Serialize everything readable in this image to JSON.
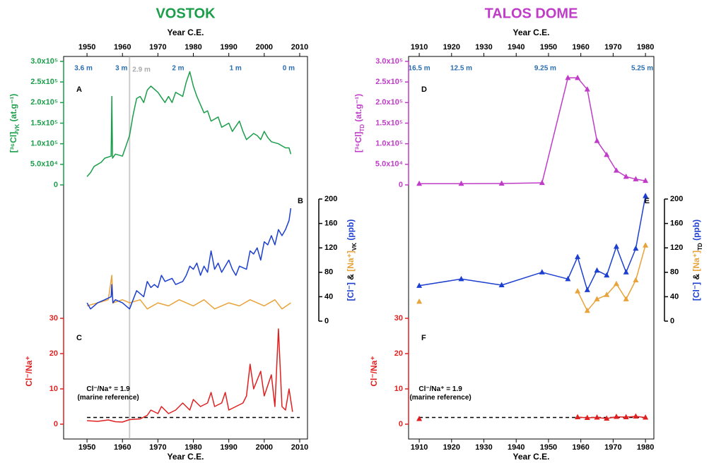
{
  "chart_data": [
    {
      "type": "line",
      "title": "VOSTOK",
      "title_color": "#1a9e4a",
      "xlabel": "Year C.E.",
      "xlim": [
        1943.4,
        2012.2
      ],
      "xticks": [
        1950,
        1960,
        1970,
        1980,
        1990,
        2000,
        2010
      ],
      "depth_color": "#2a6db0",
      "depth_labels": [
        {
          "x": 1949,
          "label": "3.6 m"
        },
        {
          "x": 1959.7,
          "label": "3 m"
        },
        {
          "x": 1975.7,
          "label": "2 m"
        },
        {
          "x": 1991.9,
          "label": "1 m"
        },
        {
          "x": 2006.9,
          "label": "0 m"
        }
      ],
      "marker_line": {
        "x": 1962,
        "label": "2.9 m",
        "color": "#aaaaaa"
      },
      "panels": [
        {
          "letter": "A",
          "side": "left",
          "axis_color": "#1a9e4a",
          "ylim": [
            0,
            300000
          ],
          "yticks": [
            0,
            {
              "value": 50000,
              "label": "5.0x10⁴"
            },
            {
              "value": 100000,
              "label": "1.0x10⁵"
            },
            {
              "value": 150000,
              "label": "1.5x10⁵"
            },
            {
              "value": 200000,
              "label": "2.0x10⁵"
            },
            {
              "value": 250000,
              "label": "2.5x10⁵"
            },
            {
              "value": 300000,
              "label": "3.0x10⁵"
            }
          ],
          "ylabel": [
            {
              "text": "[³⁶Cl]"
            },
            {
              "text": "VK",
              "sub": true
            },
            {
              "text": " (at.g⁻¹)"
            }
          ],
          "series": [
            {
              "color": "#1a9e4a",
              "x": [
                1950,
                1951,
                1952,
                1954,
                1955,
                1956.8,
                1957,
                1957.2,
                1958,
                1960,
                1961,
                1962,
                1963,
                1964,
                1965,
                1966,
                1967,
                1968,
                1970,
                1972,
                1973,
                1974,
                1975,
                1977,
                1978,
                1979,
                1980,
                1981,
                1982,
                1983,
                1984,
                1985,
                1987,
                1988,
                1990,
                1991,
                1993,
                1994,
                1995,
                1997,
                1998,
                1999,
                2000,
                2001,
                2002,
                2004,
                2005,
                2006,
                2007,
                2007.5
              ],
              "values": [
                20000,
                30000,
                45000,
                55000,
                65000,
                70000,
                215000,
                65000,
                75000,
                70000,
                95000,
                120000,
                170000,
                210000,
                215000,
                200000,
                230000,
                240000,
                225000,
                200000,
                215000,
                200000,
                225000,
                215000,
                250000,
                275000,
                240000,
                215000,
                195000,
                175000,
                180000,
                155000,
                165000,
                140000,
                150000,
                130000,
                155000,
                130000,
                110000,
                125000,
                120000,
                110000,
                130000,
                115000,
                105000,
                100000,
                95000,
                90000,
                90000,
                75000
              ]
            }
          ]
        },
        {
          "letter": "B",
          "side": "right",
          "axis_color": "#000000",
          "ylim": [
            0,
            200
          ],
          "yticks": [
            0,
            40,
            80,
            120,
            160,
            200
          ],
          "ylabel": [
            {
              "text": "[Cl⁻]",
              "color": "#1d3fcf"
            },
            {
              "text": " & ",
              "color": "#000000"
            },
            {
              "text": "[Na⁺]",
              "color": "#e8a33a"
            },
            {
              "text": "VK",
              "sub": true,
              "color": "#000000"
            },
            {
              "text": " (ppb)",
              "color": "#1d3fcf"
            }
          ],
          "series": [
            {
              "color": "#e8a33a",
              "x": [
                1950,
                1953,
                1956,
                1957,
                1957.3,
                1960,
                1962,
                1965,
                1967,
                1970,
                1973,
                1976,
                1980,
                1983,
                1986,
                1990,
                1993,
                1996,
                2000,
                2003,
                2005,
                2007.5
              ],
              "values": [
                25,
                30,
                35,
                75,
                30,
                35,
                30,
                35,
                20,
                30,
                25,
                35,
                25,
                35,
                20,
                30,
                25,
                35,
                25,
                35,
                20,
                30
              ]
            },
            {
              "color": "#1d3fcf",
              "x": [
                1950,
                1951,
                1952,
                1953,
                1955,
                1956.8,
                1957,
                1957.3,
                1958,
                1960,
                1961,
                1962,
                1963,
                1964,
                1965,
                1966,
                1967,
                1968,
                1969,
                1970,
                1971,
                1972,
                1974,
                1975,
                1977,
                1978,
                1979,
                1980,
                1981,
                1982,
                1983,
                1984,
                1985,
                1986,
                1987,
                1988,
                1990,
                1991,
                1992,
                1993,
                1995,
                1996,
                1997,
                1998,
                1999,
                2000,
                2001,
                2002,
                2003,
                2004,
                2005,
                2006,
                2007,
                2007.5
              ],
              "values": [
                30,
                20,
                25,
                30,
                35,
                40,
                60,
                30,
                35,
                30,
                25,
                20,
                35,
                50,
                45,
                40,
                65,
                55,
                60,
                55,
                75,
                65,
                70,
                60,
                65,
                75,
                90,
                85,
                95,
                75,
                90,
                80,
                115,
                85,
                95,
                80,
                100,
                85,
                75,
                90,
                85,
                115,
                110,
                120,
                100,
                130,
                125,
                140,
                125,
                150,
                140,
                150,
                165,
                185
              ]
            }
          ]
        },
        {
          "letter": "C",
          "side": "left",
          "axis_color": "#e02020",
          "ylim": [
            0,
            30
          ],
          "yticks": [
            0,
            10,
            20,
            30
          ],
          "ylabel": [
            {
              "text": "Cl⁻/Na⁺"
            }
          ],
          "reference": {
            "value": 1.9,
            "label": "Cl⁻/Na⁺ = 1.9",
            "note": "(marine reference)"
          },
          "series": [
            {
              "color": "#e02020",
              "x": [
                1950,
                1953,
                1956,
                1958,
                1960,
                1962,
                1965,
                1967,
                1968,
                1970,
                1971,
                1973,
                1975,
                1977,
                1979,
                1980,
                1982,
                1984,
                1985,
                1986,
                1988,
                1989,
                1990,
                1992,
                1994,
                1995,
                1996,
                1997,
                1999,
                2000,
                2002,
                2003,
                2004,
                2005,
                2006,
                2007,
                2008
              ],
              "values": [
                1,
                0.8,
                1.2,
                0.7,
                0.6,
                1.3,
                1.5,
                2.5,
                4,
                3,
                5,
                3,
                4,
                6,
                4,
                7,
                5,
                6,
                9,
                5,
                6,
                9,
                4,
                5,
                6,
                8,
                17,
                10,
                15,
                8,
                14,
                5,
                27,
                5,
                4,
                10,
                3.5
              ]
            }
          ]
        }
      ]
    },
    {
      "type": "line",
      "title": "TALOS DOME",
      "title_color": "#c03cc8",
      "xlabel": "Year C.E.",
      "xlim": [
        1906.7,
        1982.6
      ],
      "xticks": [
        1910,
        1920,
        1930,
        1940,
        1950,
        1960,
        1970,
        1980
      ],
      "depth_color": "#2a6db0",
      "depth_labels": [
        {
          "x": 1910,
          "label": "16.5 m"
        },
        {
          "x": 1923,
          "label": "12.5 m"
        },
        {
          "x": 1949,
          "label": "9.25 m"
        },
        {
          "x": 1979,
          "label": "5.25 m"
        }
      ],
      "marker": "triangle",
      "x": [
        1910,
        1923,
        1935.5,
        1948,
        1956,
        1959,
        1962,
        1965,
        1968,
        1971,
        1974,
        1977,
        1980
      ],
      "panels": [
        {
          "letter": "D",
          "side": "left",
          "axis_color": "#c03cc8",
          "ylim": [
            0,
            300000
          ],
          "yticks": [
            0,
            {
              "value": 50000,
              "label": "5.0x10⁴"
            },
            {
              "value": 100000,
              "label": "1.0x10⁵"
            },
            {
              "value": 150000,
              "label": "1.5x10⁵"
            },
            {
              "value": 200000,
              "label": "2.0x10⁵"
            },
            {
              "value": 250000,
              "label": "2.5x10⁵"
            },
            {
              "value": 300000,
              "label": "3.0x10⁵"
            }
          ],
          "ylabel": [
            {
              "text": "[³⁶Cl]"
            },
            {
              "text": "TD",
              "sub": true
            },
            {
              "text": " (at.g⁻¹)"
            }
          ],
          "series": [
            {
              "color": "#c03cc8",
              "values": [
                3000,
                3000,
                3500,
                5000,
                260000,
                260000,
                232000,
                107000,
                73000,
                35000,
                20000,
                14000,
                10000
              ]
            }
          ]
        },
        {
          "letter": "E",
          "side": "right",
          "axis_color": "#000000",
          "ylim": [
            0,
            200
          ],
          "yticks": [
            0,
            40,
            80,
            120,
            160,
            200
          ],
          "ylabel": [
            {
              "text": "[Cl⁻]",
              "color": "#1d3fcf"
            },
            {
              "text": " & ",
              "color": "#000000"
            },
            {
              "text": "[Na⁺]",
              "color": "#e8a33a"
            },
            {
              "text": "TD",
              "sub": true,
              "color": "#000000"
            },
            {
              "text": " (ppb)",
              "color": "#1d3fcf"
            }
          ],
          "series": [
            {
              "color": "#1d3fcf",
              "values": [
                58,
                69,
                59,
                80,
                69,
                105,
                51,
                83,
                75,
                122,
                80,
                119,
                205
              ]
            },
            {
              "color": "#e8a33a",
              "values": [
                32,
                null,
                null,
                null,
                null,
                49,
                17,
                36,
                43,
                61,
                36,
                67,
                124
              ]
            }
          ]
        },
        {
          "letter": "F",
          "side": "left",
          "axis_color": "#e02020",
          "ylim": [
            0,
            30
          ],
          "yticks": [
            0,
            10,
            20,
            30
          ],
          "ylabel": [
            {
              "text": "Cl⁻/Na⁺"
            }
          ],
          "reference": {
            "value": 1.9,
            "label": "Cl⁻/Na⁺ = 1.9",
            "note": "(marine reference)"
          },
          "series": [
            {
              "color": "#e02020",
              "values": [
                1.5,
                null,
                null,
                null,
                null,
                2,
                1.8,
                1.9,
                1.6,
                2.1,
                2,
                2.2,
                1.9
              ]
            }
          ]
        }
      ]
    }
  ]
}
